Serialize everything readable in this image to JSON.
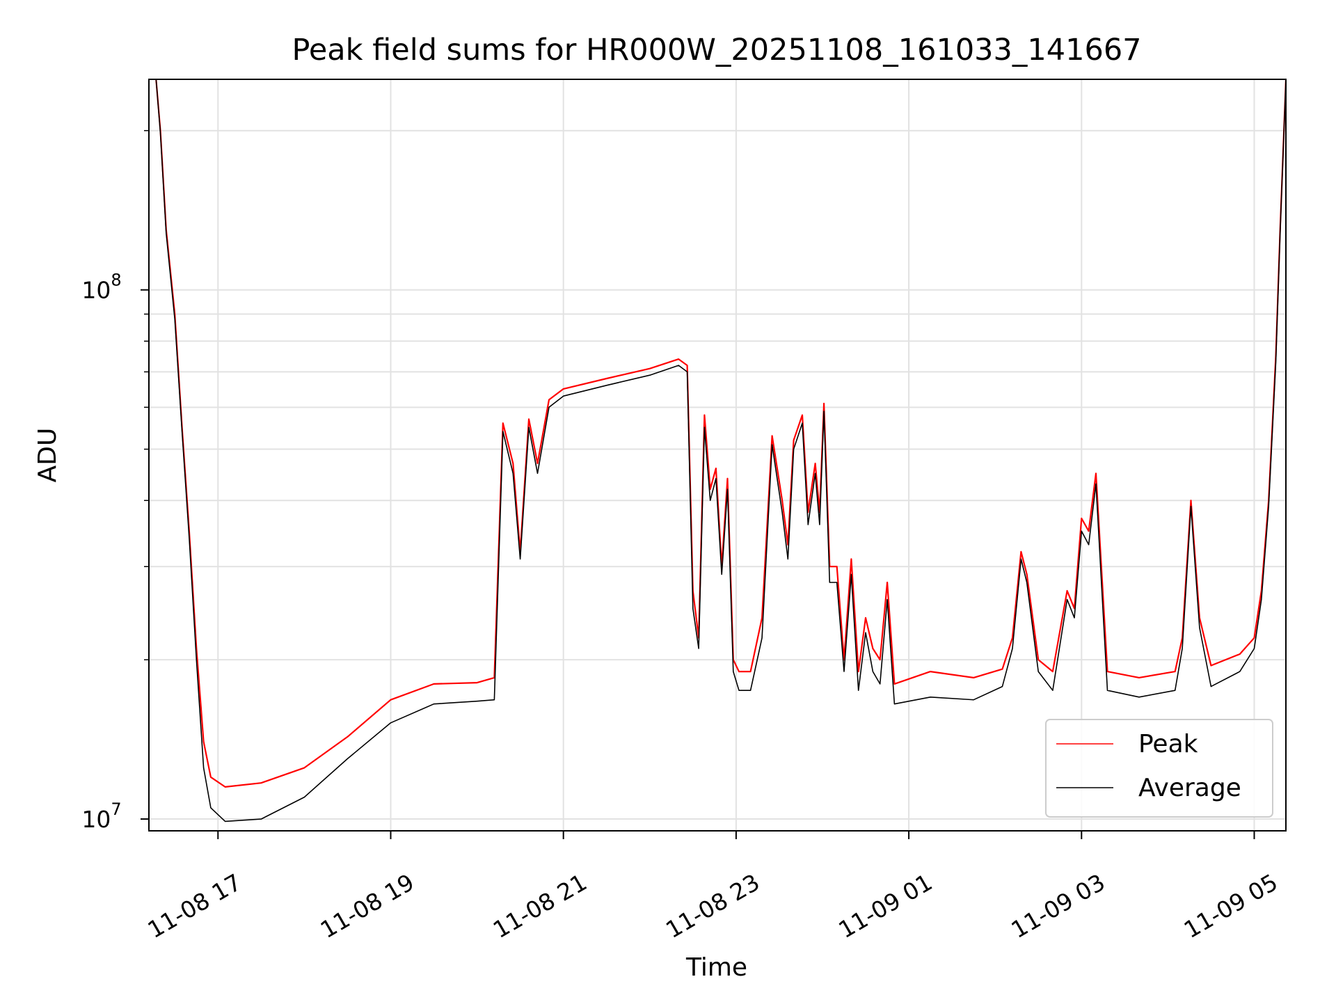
{
  "chart_data": {
    "type": "line",
    "title": "Peak field sums for HR000W_20251108_161033_141667",
    "xlabel": "Time",
    "ylabel": "ADU",
    "yscale": "log",
    "grid": true,
    "legend_placement": "bottom-right",
    "xlim": [
      "2025-11-08 16:12",
      "2025-11-09 05:22"
    ],
    "ylim": [
      9500000,
      250000000
    ],
    "x_ticks": [
      {
        "t": "2025-11-08 17:00",
        "label": "11-08 17"
      },
      {
        "t": "2025-11-08 19:00",
        "label": "11-08 19"
      },
      {
        "t": "2025-11-08 21:00",
        "label": "11-08 21"
      },
      {
        "t": "2025-11-08 23:00",
        "label": "11-08 23"
      },
      {
        "t": "2025-11-09 01:00",
        "label": "11-09 01"
      },
      {
        "t": "2025-11-09 03:00",
        "label": "11-09 03"
      },
      {
        "t": "2025-11-09 05:00",
        "label": "11-09 05"
      }
    ],
    "y_ticks": [
      {
        "v": 10000000,
        "base": "10",
        "exp": "7"
      },
      {
        "v": 100000000,
        "base": "10",
        "exp": "8"
      }
    ],
    "y_minor_ticks": [
      20000000,
      30000000,
      40000000,
      50000000,
      60000000,
      70000000,
      80000000,
      90000000,
      200000000
    ],
    "series": [
      {
        "name": "Peak",
        "color": "#ff0000",
        "points": [
          [
            "2025-11-08 16:17",
            250000000
          ],
          [
            "2025-11-08 16:20",
            200000000
          ],
          [
            "2025-11-08 16:24",
            130000000
          ],
          [
            "2025-11-08 16:30",
            90000000
          ],
          [
            "2025-11-08 16:35",
            55000000
          ],
          [
            "2025-11-08 16:40",
            35000000
          ],
          [
            "2025-11-08 16:45",
            21000000
          ],
          [
            "2025-11-08 16:50",
            14000000
          ],
          [
            "2025-11-08 16:55",
            12000000
          ],
          [
            "2025-11-08 17:05",
            11500000
          ],
          [
            "2025-11-08 17:30",
            11700000
          ],
          [
            "2025-11-08 18:00",
            12500000
          ],
          [
            "2025-11-08 18:30",
            14300000
          ],
          [
            "2025-11-08 19:00",
            16800000
          ],
          [
            "2025-11-08 19:30",
            18000000
          ],
          [
            "2025-11-08 20:00",
            18100000
          ],
          [
            "2025-11-08 20:12",
            18500000
          ],
          [
            "2025-11-08 20:18",
            56000000
          ],
          [
            "2025-11-08 20:25",
            47000000
          ],
          [
            "2025-11-08 20:30",
            32000000
          ],
          [
            "2025-11-08 20:36",
            57000000
          ],
          [
            "2025-11-08 20:42",
            47000000
          ],
          [
            "2025-11-08 20:50",
            62000000
          ],
          [
            "2025-11-08 21:00",
            65000000
          ],
          [
            "2025-11-08 21:30",
            68000000
          ],
          [
            "2025-11-08 22:00",
            71000000
          ],
          [
            "2025-11-08 22:20",
            74000000
          ],
          [
            "2025-11-08 22:26",
            72000000
          ],
          [
            "2025-11-08 22:30",
            27000000
          ],
          [
            "2025-11-08 22:34",
            22000000
          ],
          [
            "2025-11-08 22:38",
            58000000
          ],
          [
            "2025-11-08 22:42",
            42000000
          ],
          [
            "2025-11-08 22:46",
            46000000
          ],
          [
            "2025-11-08 22:50",
            30000000
          ],
          [
            "2025-11-08 22:54",
            44000000
          ],
          [
            "2025-11-08 22:58",
            20000000
          ],
          [
            "2025-11-08 23:02",
            19000000
          ],
          [
            "2025-11-08 23:10",
            19000000
          ],
          [
            "2025-11-08 23:18",
            24000000
          ],
          [
            "2025-11-08 23:25",
            53000000
          ],
          [
            "2025-11-08 23:32",
            40000000
          ],
          [
            "2025-11-08 23:36",
            33000000
          ],
          [
            "2025-11-08 23:40",
            52000000
          ],
          [
            "2025-11-08 23:46",
            58000000
          ],
          [
            "2025-11-08 23:50",
            38000000
          ],
          [
            "2025-11-08 23:55",
            47000000
          ],
          [
            "2025-11-08 23:58",
            38000000
          ],
          [
            "2025-11-09 00:01",
            61000000
          ],
          [
            "2025-11-09 00:05",
            30000000
          ],
          [
            "2025-11-09 00:10",
            30000000
          ],
          [
            "2025-11-09 00:15",
            20000000
          ],
          [
            "2025-11-09 00:20",
            31000000
          ],
          [
            "2025-11-09 00:25",
            19000000
          ],
          [
            "2025-11-09 00:30",
            24000000
          ],
          [
            "2025-11-09 00:35",
            21000000
          ],
          [
            "2025-11-09 00:40",
            20000000
          ],
          [
            "2025-11-09 00:45",
            28000000
          ],
          [
            "2025-11-09 00:50",
            18000000
          ],
          [
            "2025-11-09 01:15",
            19000000
          ],
          [
            "2025-11-09 01:45",
            18500000
          ],
          [
            "2025-11-09 02:05",
            19200000
          ],
          [
            "2025-11-09 02:12",
            22000000
          ],
          [
            "2025-11-09 02:18",
            32000000
          ],
          [
            "2025-11-09 02:22",
            29000000
          ],
          [
            "2025-11-09 02:30",
            20000000
          ],
          [
            "2025-11-09 02:40",
            19000000
          ],
          [
            "2025-11-09 02:50",
            27000000
          ],
          [
            "2025-11-09 02:55",
            25000000
          ],
          [
            "2025-11-09 03:00",
            37000000
          ],
          [
            "2025-11-09 03:05",
            35000000
          ],
          [
            "2025-11-09 03:10",
            45000000
          ],
          [
            "2025-11-09 03:18",
            19000000
          ],
          [
            "2025-11-09 03:40",
            18500000
          ],
          [
            "2025-11-09 04:05",
            19000000
          ],
          [
            "2025-11-09 04:10",
            22000000
          ],
          [
            "2025-11-09 04:16",
            40000000
          ],
          [
            "2025-11-09 04:22",
            24000000
          ],
          [
            "2025-11-09 04:30",
            19500000
          ],
          [
            "2025-11-09 04:50",
            20500000
          ],
          [
            "2025-11-09 05:00",
            22000000
          ],
          [
            "2025-11-09 05:05",
            27000000
          ],
          [
            "2025-11-09 05:10",
            40000000
          ],
          [
            "2025-11-09 05:15",
            75000000
          ],
          [
            "2025-11-09 05:18",
            130000000
          ],
          [
            "2025-11-09 05:22",
            250000000
          ]
        ]
      },
      {
        "name": "Average",
        "color": "#000000",
        "points": [
          [
            "2025-11-08 16:17",
            250000000
          ],
          [
            "2025-11-08 16:20",
            198000000
          ],
          [
            "2025-11-08 16:24",
            128000000
          ],
          [
            "2025-11-08 16:30",
            88000000
          ],
          [
            "2025-11-08 16:35",
            54000000
          ],
          [
            "2025-11-08 16:40",
            34000000
          ],
          [
            "2025-11-08 16:45",
            20000000
          ],
          [
            "2025-11-08 16:50",
            12500000
          ],
          [
            "2025-11-08 16:55",
            10500000
          ],
          [
            "2025-11-08 17:05",
            9900000
          ],
          [
            "2025-11-08 17:30",
            10000000
          ],
          [
            "2025-11-08 18:00",
            11000000
          ],
          [
            "2025-11-08 18:30",
            13000000
          ],
          [
            "2025-11-08 19:00",
            15200000
          ],
          [
            "2025-11-08 19:30",
            16500000
          ],
          [
            "2025-11-08 20:00",
            16700000
          ],
          [
            "2025-11-08 20:12",
            16800000
          ],
          [
            "2025-11-08 20:18",
            54000000
          ],
          [
            "2025-11-08 20:25",
            45000000
          ],
          [
            "2025-11-08 20:30",
            31000000
          ],
          [
            "2025-11-08 20:36",
            55000000
          ],
          [
            "2025-11-08 20:42",
            45000000
          ],
          [
            "2025-11-08 20:50",
            60000000
          ],
          [
            "2025-11-08 21:00",
            63000000
          ],
          [
            "2025-11-08 21:30",
            66000000
          ],
          [
            "2025-11-08 22:00",
            69000000
          ],
          [
            "2025-11-08 22:20",
            72000000
          ],
          [
            "2025-11-08 22:26",
            70000000
          ],
          [
            "2025-11-08 22:30",
            25000000
          ],
          [
            "2025-11-08 22:34",
            21000000
          ],
          [
            "2025-11-08 22:38",
            55000000
          ],
          [
            "2025-11-08 22:42",
            40000000
          ],
          [
            "2025-11-08 22:46",
            44000000
          ],
          [
            "2025-11-08 22:50",
            29000000
          ],
          [
            "2025-11-08 22:54",
            42000000
          ],
          [
            "2025-11-08 22:58",
            19000000
          ],
          [
            "2025-11-08 23:02",
            17500000
          ],
          [
            "2025-11-08 23:10",
            17500000
          ],
          [
            "2025-11-08 23:18",
            22000000
          ],
          [
            "2025-11-08 23:25",
            51000000
          ],
          [
            "2025-11-08 23:32",
            38000000
          ],
          [
            "2025-11-08 23:36",
            31000000
          ],
          [
            "2025-11-08 23:40",
            50000000
          ],
          [
            "2025-11-08 23:46",
            56000000
          ],
          [
            "2025-11-08 23:50",
            36000000
          ],
          [
            "2025-11-08 23:55",
            45000000
          ],
          [
            "2025-11-08 23:58",
            36000000
          ],
          [
            "2025-11-09 00:01",
            59000000
          ],
          [
            "2025-11-09 00:05",
            28000000
          ],
          [
            "2025-11-09 00:10",
            28000000
          ],
          [
            "2025-11-09 00:15",
            19000000
          ],
          [
            "2025-11-09 00:20",
            29000000
          ],
          [
            "2025-11-09 00:25",
            17500000
          ],
          [
            "2025-11-09 00:30",
            22500000
          ],
          [
            "2025-11-09 00:35",
            19000000
          ],
          [
            "2025-11-09 00:40",
            18000000
          ],
          [
            "2025-11-09 00:45",
            26000000
          ],
          [
            "2025-11-09 00:50",
            16500000
          ],
          [
            "2025-11-09 01:15",
            17000000
          ],
          [
            "2025-11-09 01:45",
            16800000
          ],
          [
            "2025-11-09 02:05",
            17800000
          ],
          [
            "2025-11-09 02:12",
            21000000
          ],
          [
            "2025-11-09 02:18",
            31000000
          ],
          [
            "2025-11-09 02:22",
            28000000
          ],
          [
            "2025-11-09 02:30",
            19000000
          ],
          [
            "2025-11-09 02:40",
            17500000
          ],
          [
            "2025-11-09 02:50",
            26000000
          ],
          [
            "2025-11-09 02:55",
            24000000
          ],
          [
            "2025-11-09 03:00",
            35000000
          ],
          [
            "2025-11-09 03:05",
            33000000
          ],
          [
            "2025-11-09 03:10",
            43000000
          ],
          [
            "2025-11-09 03:18",
            17500000
          ],
          [
            "2025-11-09 03:40",
            17000000
          ],
          [
            "2025-11-09 04:05",
            17500000
          ],
          [
            "2025-11-09 04:10",
            21000000
          ],
          [
            "2025-11-09 04:16",
            39000000
          ],
          [
            "2025-11-09 04:22",
            23000000
          ],
          [
            "2025-11-09 04:30",
            17800000
          ],
          [
            "2025-11-09 04:50",
            19000000
          ],
          [
            "2025-11-09 05:00",
            21000000
          ],
          [
            "2025-11-09 05:05",
            26000000
          ],
          [
            "2025-11-09 05:10",
            39000000
          ],
          [
            "2025-11-09 05:15",
            73000000
          ],
          [
            "2025-11-09 05:18",
            128000000
          ],
          [
            "2025-11-09 05:22",
            250000000
          ]
        ]
      }
    ]
  }
}
